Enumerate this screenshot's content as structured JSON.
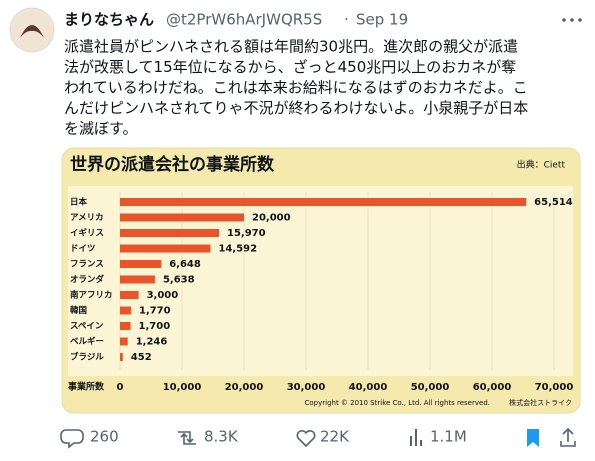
{
  "tweet": {
    "name": "まりなちゃん",
    "handle": "@t2PrW6hArJWQR5S",
    "separator": "·",
    "date": "Sep 19",
    "text_lines": [
      "派遣社員がピンハネされる額は年間約30兆円。進次郎の親父が派遣",
      "法が改悪して15年位になるから、ざっと450兆円以上のおカネが奪",
      "われているわけだね。これは本来お給料になるはずのおカネだよ。こ",
      "んだけピンハネされてりゃ不況が終わるわけないよ。小泉親子が日本",
      "を滅ぼす。"
    ],
    "replies": "260",
    "reposts": "8.3K",
    "likes": "22K",
    "views": "1.1M"
  },
  "chart_data": {
    "type": "bar",
    "orientation": "horizontal",
    "title": "世界の派遣会社の事業所数",
    "source": "出典：Ciett",
    "xlabel": "事業所数",
    "copyright": "Copyright © 2010 Strike Co., Ltd. All rights reserved.",
    "logo": "株式会社ストライク",
    "categories": [
      "日本",
      "アメリカ",
      "イギリス",
      "ドイツ",
      "フランス",
      "オランダ",
      "南アフリカ",
      "韓国",
      "スペイン",
      "ベルギー",
      "ブラジル"
    ],
    "values": [
      65514,
      20000,
      15970,
      14592,
      6648,
      5638,
      3000,
      1770,
      1700,
      1246,
      452
    ],
    "value_labels": [
      "65,514",
      "20,000",
      "15,970",
      "14,592",
      "6,648",
      "5,638",
      "3,000",
      "1,770",
      "1,700",
      "1,246",
      "452"
    ],
    "color": "#e8552b",
    "xlim": [
      0,
      70000
    ],
    "xticks": [
      0,
      {
        "value": 10000,
        "label": "10,000"
      },
      {
        "value": 20000,
        "label": "20,000"
      },
      {
        "value": 30000,
        "label": "30,000"
      },
      {
        "value": 40000,
        "label": "40,000"
      },
      {
        "value": 50000,
        "label": "50,000"
      },
      {
        "value": 60000,
        "label": "60,000"
      },
      {
        "value": 70000,
        "label": "70,000"
      }
    ]
  }
}
